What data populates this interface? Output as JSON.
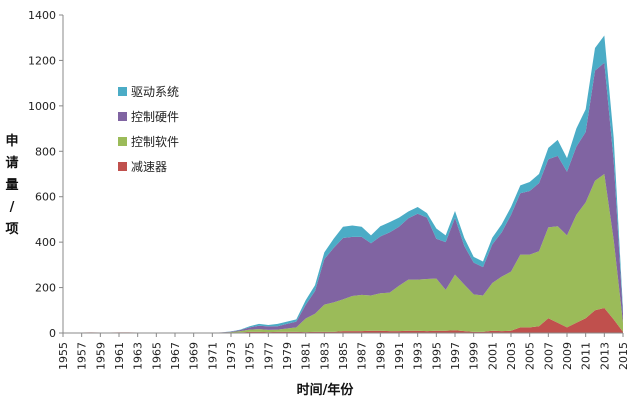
{
  "chart_data": {
    "type": "area",
    "stacked": true,
    "xlabel": "时间/年份",
    "ylabel": "申请量/项",
    "ylim": [
      0,
      1400
    ],
    "yticks": [
      0,
      200,
      400,
      600,
      800,
      1000,
      1200,
      1400
    ],
    "xticks": [
      1955,
      1957,
      1959,
      1961,
      1963,
      1965,
      1967,
      1969,
      1971,
      1973,
      1975,
      1977,
      1979,
      1981,
      1983,
      1985,
      1987,
      1989,
      1991,
      1993,
      1995,
      1997,
      1999,
      2001,
      2003,
      2005,
      2007,
      2009,
      2011,
      2013,
      2015
    ],
    "grid": false,
    "legend_position": "left",
    "x": [
      1955,
      1956,
      1957,
      1958,
      1959,
      1960,
      1961,
      1962,
      1963,
      1964,
      1965,
      1966,
      1967,
      1968,
      1969,
      1970,
      1971,
      1972,
      1973,
      1974,
      1975,
      1976,
      1977,
      1978,
      1979,
      1980,
      1981,
      1982,
      1983,
      1984,
      1985,
      1986,
      1987,
      1988,
      1989,
      1990,
      1991,
      1992,
      1993,
      1994,
      1995,
      1996,
      1997,
      1998,
      1999,
      2000,
      2001,
      2002,
      2003,
      2004,
      2005,
      2006,
      2007,
      2008,
      2009,
      2010,
      2011,
      2012,
      2013,
      2014,
      2015
    ],
    "series": [
      {
        "name": "减速器",
        "color": "#c0504d",
        "values": [
          0,
          0,
          2,
          3,
          2,
          2,
          3,
          3,
          2,
          1,
          1,
          1,
          1,
          0,
          0,
          1,
          1,
          2,
          2,
          3,
          5,
          5,
          4,
          5,
          5,
          5,
          4,
          5,
          5,
          5,
          8,
          8,
          8,
          10,
          10,
          8,
          8,
          10,
          10,
          8,
          10,
          10,
          12,
          8,
          5,
          5,
          10,
          8,
          10,
          25,
          25,
          30,
          65,
          45,
          25,
          45,
          65,
          100,
          110,
          60,
          5
        ]
      },
      {
        "name": "控制软件",
        "color": "#9bbb59",
        "values": [
          0,
          0,
          0,
          0,
          0,
          0,
          0,
          0,
          0,
          0,
          0,
          0,
          0,
          0,
          0,
          0,
          0,
          0,
          2,
          5,
          10,
          12,
          10,
          10,
          15,
          20,
          60,
          80,
          120,
          130,
          140,
          155,
          160,
          155,
          165,
          170,
          200,
          225,
          225,
          230,
          230,
          180,
          245,
          205,
          165,
          160,
          210,
          240,
          260,
          320,
          320,
          330,
          400,
          425,
          405,
          475,
          510,
          570,
          590,
          350,
          40
        ]
      },
      {
        "name": "控制硬件",
        "color": "#8064a2",
        "values": [
          0,
          0,
          0,
          0,
          0,
          0,
          0,
          0,
          0,
          0,
          0,
          0,
          0,
          0,
          0,
          0,
          0,
          1,
          2,
          5,
          10,
          15,
          15,
          15,
          20,
          25,
          60,
          100,
          200,
          240,
          270,
          260,
          255,
          230,
          250,
          265,
          260,
          270,
          290,
          270,
          175,
          210,
          250,
          170,
          140,
          125,
          170,
          195,
          250,
          270,
          280,
          300,
          300,
          310,
          280,
          300,
          310,
          485,
          490,
          350,
          40
        ]
      },
      {
        "name": "驱动系统",
        "color": "#4bacc6",
        "values": [
          0,
          0,
          0,
          0,
          0,
          0,
          0,
          0,
          0,
          0,
          0,
          0,
          0,
          0,
          0,
          0,
          0,
          0,
          1,
          2,
          5,
          8,
          6,
          10,
          10,
          10,
          20,
          25,
          30,
          40,
          50,
          50,
          45,
          35,
          45,
          45,
          40,
          30,
          30,
          20,
          45,
          30,
          30,
          35,
          25,
          25,
          30,
          35,
          35,
          35,
          40,
          40,
          50,
          70,
          60,
          80,
          100,
          100,
          120,
          100,
          20
        ]
      }
    ]
  }
}
